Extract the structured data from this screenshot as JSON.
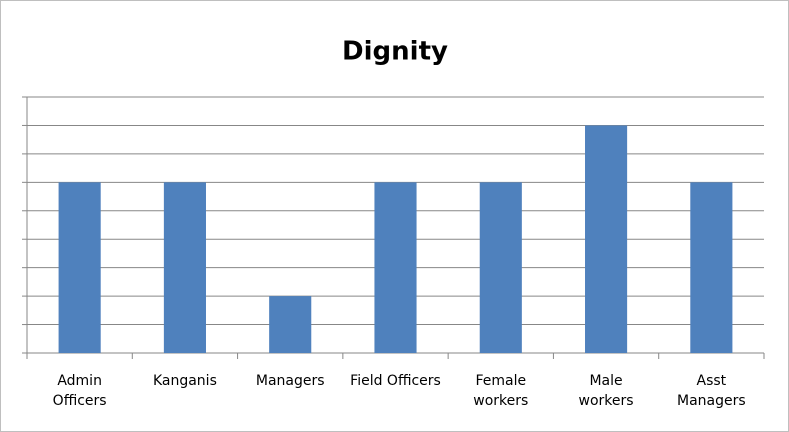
{
  "chart_data": {
    "type": "bar",
    "title": "Dignity",
    "categories": [
      "Admin\nOfficers",
      "Kanganis",
      "Managers",
      "Field Officers",
      "Female\nworkers",
      "Male\nworkers",
      "Asst\nManagers"
    ],
    "values": [
      6,
      6,
      2,
      6,
      6,
      8,
      6
    ],
    "color": "#4f81bd",
    "ylim": [
      0,
      9
    ],
    "yticks": [
      0,
      1,
      2,
      3,
      4,
      5,
      6,
      7,
      8,
      9
    ],
    "grid": true
  }
}
